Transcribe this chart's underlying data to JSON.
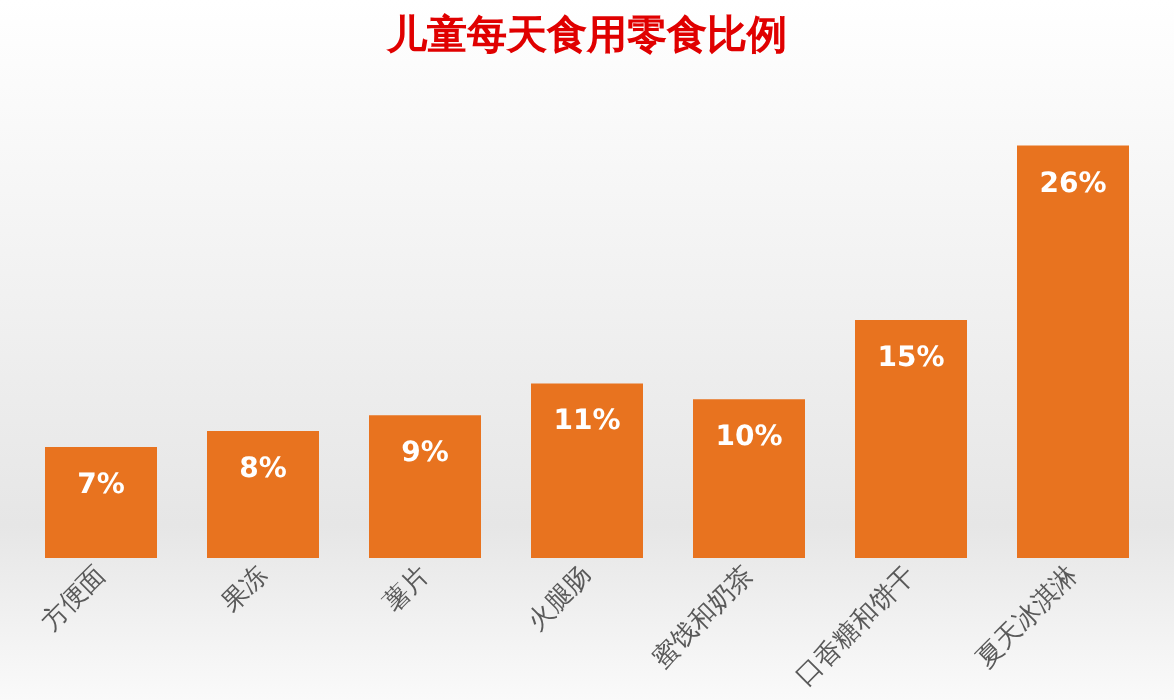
{
  "chart_data": {
    "type": "bar",
    "title": "儿童每天食用零食比例",
    "categories": [
      "方便面",
      "果冻",
      "薯片",
      "火腿肠",
      "蜜饯和奶茶",
      "口香糖和饼干",
      "夏天冰淇淋"
    ],
    "values": [
      7,
      8,
      9,
      11,
      10,
      15,
      26
    ],
    "value_labels": [
      "7%",
      "8%",
      "9%",
      "11%",
      "10%",
      "15%",
      "26%"
    ],
    "color": "#e8731f"
  }
}
